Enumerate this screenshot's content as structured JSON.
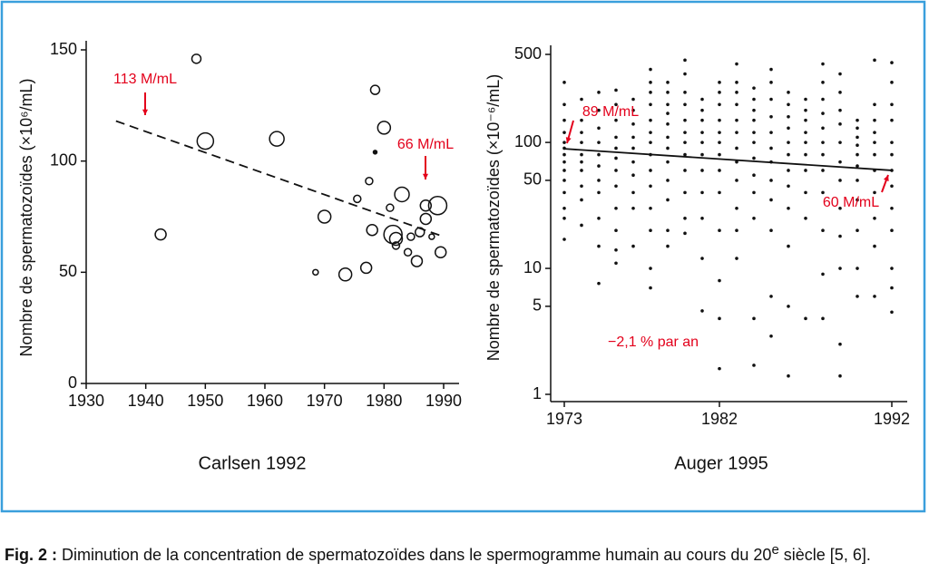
{
  "chart_data": [
    {
      "type": "scatter",
      "title": "Carlsen 1992",
      "ylabel": "Nombre de spermatozoïdes (×10⁶/mL)",
      "xlim": [
        1930,
        1990
      ],
      "xticks": [
        1930,
        1940,
        1950,
        1960,
        1970,
        1980,
        1990
      ],
      "ylim": [
        0,
        150
      ],
      "yticks": [
        0,
        50,
        100,
        150
      ],
      "series": [
        {
          "color": "#111111",
          "x": [
            1942.5,
            1948.5,
            1950,
            1962,
            1968.5,
            1970,
            1973.5,
            1975.5,
            1977,
            1977.5,
            1978,
            1978.5,
            1978.5,
            1980,
            1981,
            1981.5,
            1982,
            1982,
            1983,
            1984,
            1984.5,
            1985.5,
            1986,
            1987,
            1987,
            1988,
            1989,
            1989.5
          ],
          "values": [
            67,
            146,
            109,
            110,
            50,
            75,
            49,
            83,
            52,
            91,
            69,
            132,
            104,
            115,
            79,
            67,
            65,
            62,
            85,
            59,
            66,
            55,
            68,
            74,
            80,
            66,
            80,
            59
          ],
          "sizes": [
            6,
            5,
            9,
            8,
            3,
            7,
            7,
            4,
            6,
            4,
            6,
            5,
            2,
            7,
            4,
            10,
            7,
            4,
            8,
            4,
            4,
            6,
            5,
            6,
            6,
            3,
            10,
            6
          ]
        }
      ],
      "trend": {
        "x": [
          1935,
          1990
        ],
        "values": [
          118,
          66
        ]
      },
      "annotations": [
        "113 M/mL",
        "66 M/mL"
      ]
    },
    {
      "type": "scatter",
      "title": "Auger 1995",
      "ylabel": "Nombre de spermatozoïdes (×10⁻⁶/mL)",
      "log_y": true,
      "xlim": [
        1973,
        1992
      ],
      "xticks": [
        1973,
        1982,
        1992
      ],
      "ylim": [
        1,
        500
      ],
      "yticks": [
        1,
        5,
        10,
        50,
        100,
        500
      ],
      "color": "#111111",
      "columns": [
        {
          "x": 1973,
          "values": [
            300,
            200,
            150,
            120,
            100,
            90,
            80,
            70,
            60,
            50,
            40,
            30,
            25,
            17
          ]
        },
        {
          "x": 1974,
          "values": [
            220,
            150,
            120,
            100,
            80,
            70,
            60,
            45,
            35,
            22
          ]
        },
        {
          "x": 1975,
          "values": [
            250,
            180,
            130,
            100,
            80,
            65,
            50,
            40,
            25,
            15,
            7.6
          ]
        },
        {
          "x": 1976,
          "values": [
            260,
            200,
            150,
            110,
            90,
            75,
            60,
            45,
            30,
            20,
            14,
            11
          ]
        },
        {
          "x": 1977,
          "values": [
            220,
            180,
            140,
            110,
            90,
            70,
            55,
            40,
            30,
            15
          ]
        },
        {
          "x": 1978,
          "values": [
            380,
            300,
            250,
            200,
            150,
            120,
            100,
            80,
            60,
            45,
            30,
            20,
            10,
            7
          ]
        },
        {
          "x": 1979,
          "values": [
            300,
            250,
            200,
            170,
            140,
            110,
            90,
            70,
            50,
            35,
            20,
            15
          ]
        },
        {
          "x": 1980,
          "values": [
            450,
            350,
            250,
            200,
            150,
            120,
            100,
            80,
            60,
            40,
            25,
            19
          ]
        },
        {
          "x": 1981,
          "values": [
            220,
            180,
            150,
            120,
            100,
            80,
            60,
            40,
            25,
            12,
            4.6
          ]
        },
        {
          "x": 1982,
          "values": [
            300,
            250,
            200,
            150,
            120,
            100,
            80,
            60,
            40,
            20,
            8,
            4,
            1.6
          ]
        },
        {
          "x": 1983,
          "values": [
            420,
            300,
            250,
            200,
            150,
            120,
            90,
            70,
            50,
            30,
            20,
            12
          ]
        },
        {
          "x": 1984,
          "values": [
            270,
            220,
            180,
            150,
            120,
            100,
            75,
            55,
            40,
            25,
            4,
            1.7
          ]
        },
        {
          "x": 1985,
          "values": [
            380,
            300,
            220,
            160,
            120,
            90,
            70,
            50,
            35,
            20,
            6,
            2.9
          ]
        },
        {
          "x": 1986,
          "values": [
            250,
            200,
            160,
            130,
            100,
            80,
            60,
            45,
            30,
            15,
            5,
            1.4
          ]
        },
        {
          "x": 1987,
          "values": [
            220,
            180,
            150,
            120,
            100,
            80,
            60,
            40,
            25,
            4
          ]
        },
        {
          "x": 1988,
          "values": [
            420,
            300,
            220,
            170,
            130,
            100,
            80,
            60,
            40,
            20,
            9,
            4
          ]
        },
        {
          "x": 1989,
          "values": [
            350,
            250,
            180,
            140,
            100,
            70,
            50,
            30,
            18,
            10,
            2.5,
            1.4
          ]
        },
        {
          "x": 1990,
          "values": [
            150,
            130,
            110,
            95,
            80,
            65,
            50,
            35,
            20,
            10,
            6
          ]
        },
        {
          "x": 1991,
          "values": [
            450,
            200,
            150,
            120,
            100,
            80,
            60,
            40,
            25,
            15,
            6
          ]
        },
        {
          "x": 1992,
          "values": [
            430,
            300,
            200,
            150,
            100,
            80,
            60,
            45,
            30,
            20,
            10,
            7,
            4.5
          ]
        }
      ],
      "trend": {
        "x": [
          1973,
          1992
        ],
        "values": [
          89,
          60
        ]
      },
      "annotations": [
        "89 M/mL",
        "60 M/mL",
        "−2,1 % par an"
      ]
    }
  ],
  "caption": {
    "label": "Fig. 2 :",
    "text": " Diminution de la concentration de spermatozoïdes dans le spermogramme humain au cours du 20",
    "sup": "e",
    "text_end": " siècle [5, 6]."
  }
}
